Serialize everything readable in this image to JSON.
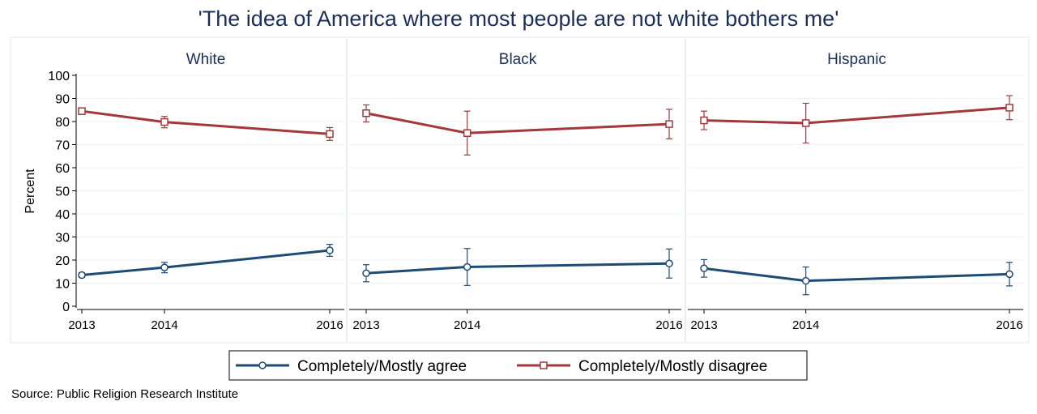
{
  "chart_data": {
    "type": "line",
    "title": "'The idea of America where most people are not white bothers me'",
    "ylabel": "Percent",
    "ylim": [
      0,
      100
    ],
    "yticks": [
      0,
      10,
      20,
      30,
      40,
      50,
      60,
      70,
      80,
      90,
      100
    ],
    "x": [
      2013,
      2014,
      2016
    ],
    "xtick_labels": [
      "2013",
      "2014",
      "2016"
    ],
    "grid": true,
    "legend_position": "bottom",
    "series_meta": [
      {
        "name": "Completely/Mostly agree",
        "color": "#1e4b74",
        "marker": "circle"
      },
      {
        "name": "Completely/Mostly disagree",
        "color": "#a3383b",
        "marker": "square"
      }
    ],
    "panels": [
      {
        "title": "White",
        "series": [
          {
            "name": "Completely/Mostly agree",
            "values": [
              13.5,
              16.8,
              24.2
            ],
            "ci_low": [
              12.5,
              14.5,
              21.6
            ],
            "ci_high": [
              14.5,
              19.0,
              26.8
            ]
          },
          {
            "name": "Completely/Mostly disagree",
            "values": [
              84.5,
              79.8,
              74.6
            ],
            "ci_low": [
              83.5,
              77.3,
              71.8
            ],
            "ci_high": [
              85.5,
              82.2,
              77.4
            ]
          }
        ]
      },
      {
        "title": "Black",
        "series": [
          {
            "name": "Completely/Mostly agree",
            "values": [
              14.3,
              17.0,
              18.5
            ],
            "ci_low": [
              10.6,
              9.0,
              12.2
            ],
            "ci_high": [
              18.0,
              25.0,
              24.8
            ]
          },
          {
            "name": "Completely/Mostly disagree",
            "values": [
              83.6,
              75.0,
              78.9
            ],
            "ci_low": [
              79.8,
              65.5,
              72.5
            ],
            "ci_high": [
              87.2,
              84.5,
              85.3
            ]
          }
        ]
      },
      {
        "title": "Hispanic",
        "series": [
          {
            "name": "Completely/Mostly agree",
            "values": [
              16.4,
              11.0,
              13.9
            ],
            "ci_low": [
              12.6,
              5.0,
              8.8
            ],
            "ci_high": [
              20.2,
              17.0,
              19.0
            ]
          },
          {
            "name": "Completely/Mostly disagree",
            "values": [
              80.5,
              79.3,
              86.0
            ],
            "ci_low": [
              76.5,
              70.7,
              80.8
            ],
            "ci_high": [
              84.5,
              87.9,
              91.2
            ]
          }
        ]
      }
    ],
    "source": "Source: Public Religion Research Institute"
  }
}
